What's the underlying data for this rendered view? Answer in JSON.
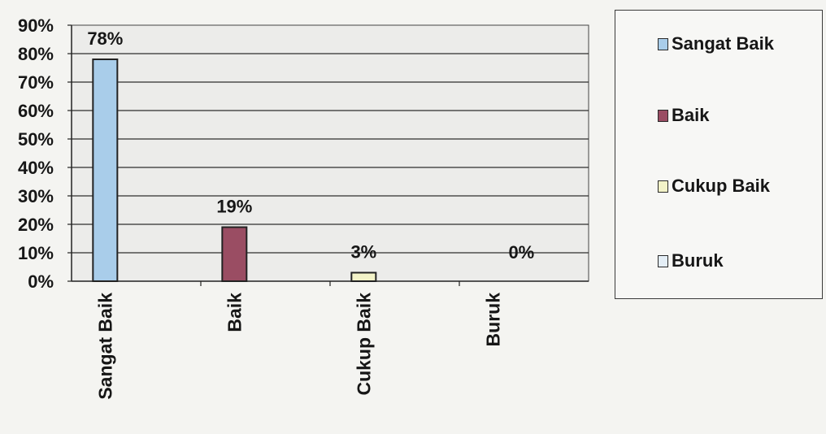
{
  "chart_data": {
    "type": "bar",
    "categories": [
      "Sangat Baik",
      "Baik",
      "Cukup Baik",
      "Buruk"
    ],
    "values": [
      78,
      19,
      3,
      0
    ],
    "data_labels": [
      "78%",
      "19%",
      "3%",
      "0%"
    ],
    "colors": [
      "#a9cdea",
      "#9a4d63",
      "#f3f3c8",
      "#e4eef6"
    ],
    "ylim": [
      0,
      90
    ],
    "yticks": [
      "0%",
      "10%",
      "20%",
      "30%",
      "40%",
      "50%",
      "60%",
      "70%",
      "80%",
      "90%"
    ],
    "grid": true,
    "legend_position": "right",
    "legend": [
      "Sangat Baik",
      "Baik",
      "Cukup Baik",
      "Buruk"
    ]
  }
}
